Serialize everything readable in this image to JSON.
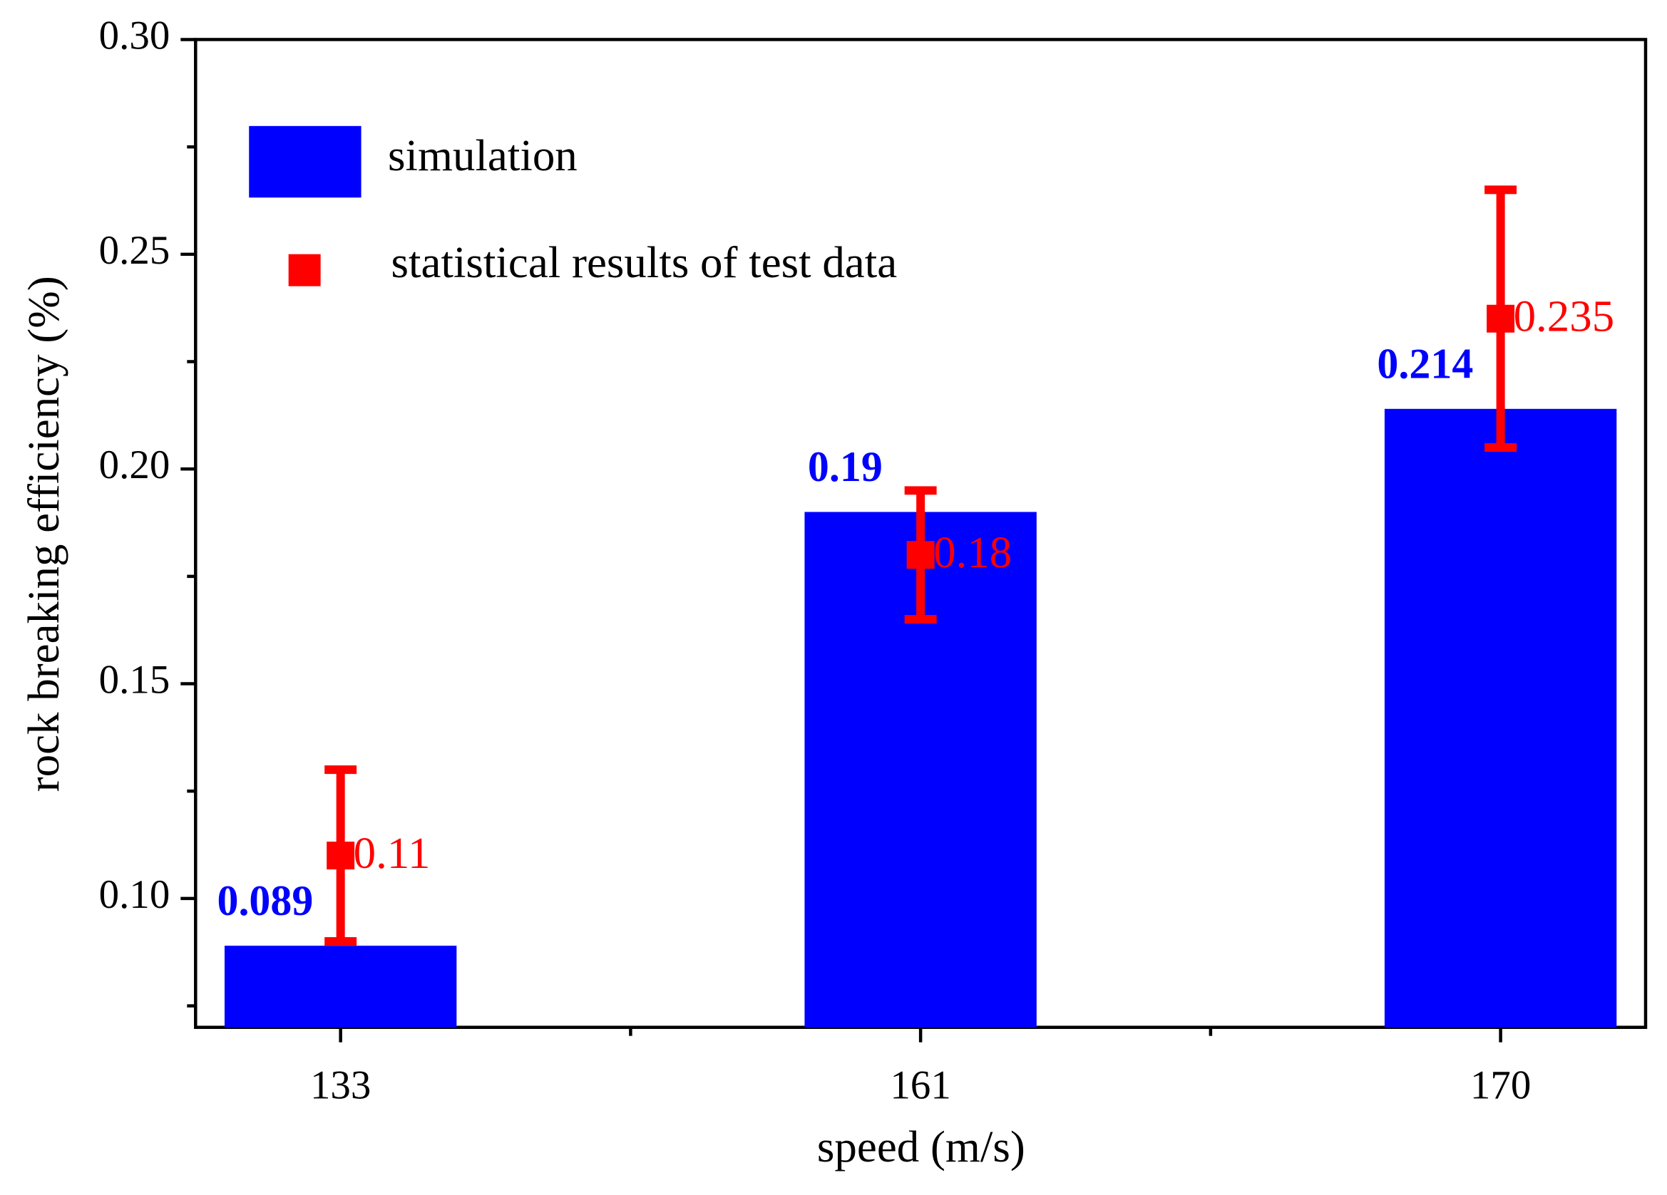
{
  "chart_data": {
    "type": "bar",
    "xlabel": "speed (m/s)",
    "ylabel": "rock breaking efficiency (%)",
    "categories": [
      "133",
      "161",
      "170"
    ],
    "series": [
      {
        "name": "simulation",
        "color": "#0000ff",
        "values": [
          0.089,
          0.19,
          0.214
        ]
      },
      {
        "name": "statistical results of test data",
        "color": "#ff0000",
        "values": [
          0.11,
          0.18,
          0.235
        ],
        "errors": [
          0.02,
          0.015,
          0.03
        ]
      }
    ],
    "ylim": [
      0.07,
      0.3
    ],
    "yticks": [
      {
        "value": 0.1,
        "label": "0.10"
      },
      0.15,
      {
        "value": 0.2,
        "label": "0.20"
      },
      0.25,
      {
        "value": 0.3,
        "label": "0.30"
      }
    ],
    "yminorticks": [
      0.075,
      0.125,
      0.175,
      0.225,
      0.275
    ],
    "legend": "upper left"
  }
}
